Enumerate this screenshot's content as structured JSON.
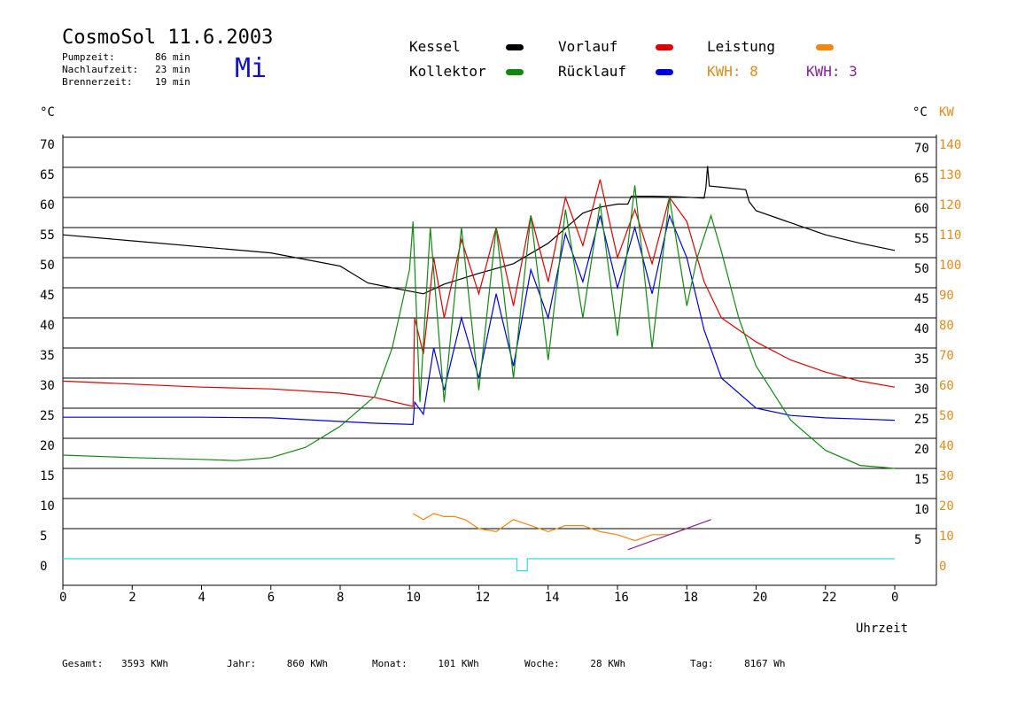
{
  "header": {
    "title": "CosmoSol 11.6.2003",
    "day": "Mi",
    "stats": [
      {
        "label": "Pumpzeit:",
        "value": "86 min"
      },
      {
        "label": "Nachlaufzeit:",
        "value": "23 min"
      },
      {
        "label": "Brennerzeit:",
        "value": "19 min"
      }
    ]
  },
  "legend": {
    "kessel": {
      "label": "Kessel",
      "color": "#000000"
    },
    "vorlauf": {
      "label": "Vorlauf",
      "color": "#dd0000"
    },
    "leistung": {
      "label": "Leistung",
      "color": "#ee8811"
    },
    "kollektor": {
      "label": "Kollektor",
      "color": "#118811"
    },
    "ruecklauf": {
      "label": "Rücklauf",
      "color": "#0000dd"
    },
    "kwh1": {
      "label": "KWH: 8",
      "color": "#e08c1e"
    },
    "kwh2": {
      "label": "KWH: 3",
      "color": "#882299"
    }
  },
  "footer": [
    {
      "label": "Gesamt:",
      "value": "3593 KWh"
    },
    {
      "label": "Jahr:",
      "value": "860 KWh"
    },
    {
      "label": "Monat:",
      "value": "101 KWh"
    },
    {
      "label": "Woche:",
      "value": "28 KWh"
    },
    {
      "label": "Tag:",
      "value": "8167 Wh"
    }
  ],
  "chart_data": {
    "type": "line",
    "xlabel": "Uhrzeit",
    "ylabel_left": "°C",
    "ylabel_right": "°C",
    "ylabel_power": "KW",
    "xlim": [
      0,
      24
    ],
    "ylim": [
      -4,
      74
    ],
    "x_ticks": [
      "0",
      "2",
      "4",
      "6",
      "8",
      "10",
      "12",
      "14",
      "16",
      "18",
      "20",
      "22",
      "0"
    ],
    "y_ticks_left": [
      0,
      5,
      10,
      15,
      20,
      25,
      30,
      35,
      40,
      45,
      50,
      55,
      60,
      65,
      70
    ],
    "y_ticks_right": [
      5,
      10,
      15,
      20,
      25,
      30,
      35,
      40,
      45,
      50,
      55,
      60,
      65,
      70
    ],
    "y_ticks_power": [
      0,
      10,
      20,
      30,
      40,
      50,
      60,
      70,
      80,
      90,
      100,
      110,
      120,
      130,
      140
    ],
    "grid": true,
    "series": [
      {
        "name": "Kessel",
        "color": "#000000",
        "x": [
          0,
          2,
          4,
          6,
          8,
          8.8,
          9.5,
          10.4,
          11,
          12,
          13,
          14,
          15,
          15.5,
          16,
          16.3,
          16.4,
          17,
          17.8,
          18.5,
          18.55,
          18.6,
          18.65,
          19,
          19.7,
          19.8,
          20,
          21,
          22,
          23,
          24
        ],
        "y": [
          53.8,
          52.8,
          51.8,
          50.8,
          48.6,
          45.8,
          45,
          44,
          45.6,
          47.4,
          49,
          52.4,
          57.4,
          58.4,
          58.9,
          58.9,
          60.2,
          60.2,
          60.1,
          59.9,
          61.6,
          65.2,
          61.9,
          61.7,
          61.3,
          59.3,
          57.8,
          55.8,
          53.8,
          52.4,
          51.2
        ]
      },
      {
        "name": "Vorlauf",
        "color": "#dd0000",
        "x": [
          0,
          2,
          4,
          6,
          8,
          9,
          10.1,
          10.15,
          10.4,
          10.7,
          11,
          11.5,
          12,
          12.5,
          13,
          13.5,
          14,
          14.5,
          15,
          15.5,
          16,
          16.5,
          17,
          17.5,
          18,
          18.5,
          19,
          20,
          21,
          22,
          23,
          24
        ],
        "y": [
          29.5,
          29,
          28.5,
          28.2,
          27.5,
          26.8,
          25.3,
          40,
          34,
          50,
          40,
          53,
          44,
          55,
          42,
          57,
          46,
          60,
          52,
          63,
          50,
          58,
          49,
          60,
          56,
          46,
          40,
          36,
          33,
          31,
          29.5,
          28.5
        ]
      },
      {
        "name": "Rücklauf",
        "color": "#0000dd",
        "x": [
          0,
          2,
          4,
          6,
          8,
          9,
          10.1,
          10.15,
          10.4,
          10.7,
          11,
          11.5,
          12,
          12.5,
          13,
          13.5,
          14,
          14.5,
          15,
          15.5,
          16,
          16.5,
          17,
          17.5,
          18,
          18.5,
          19,
          20,
          21,
          22,
          23,
          24
        ],
        "y": [
          23.5,
          23.5,
          23.5,
          23.4,
          22.8,
          22.5,
          22.3,
          26,
          24,
          35,
          28,
          40,
          30,
          44,
          32,
          48,
          40,
          54,
          46,
          57,
          45,
          55,
          44,
          57,
          50,
          38,
          30,
          25,
          23.8,
          23.4,
          23.2,
          23
        ],
        "note": "oscillates during pump cycles"
      },
      {
        "name": "Kollektor",
        "color": "#118811",
        "x": [
          0,
          2,
          4,
          5,
          6,
          7,
          8,
          9,
          9.5,
          10,
          10.1,
          10.3,
          10.6,
          11,
          11.5,
          12,
          12.5,
          13,
          13.5,
          14,
          14.5,
          15,
          15.5,
          16,
          16.5,
          17,
          17.5,
          18,
          18.3,
          18.7,
          19,
          19.5,
          20,
          21,
          22,
          23,
          24
        ],
        "y": [
          17.2,
          16.8,
          16.5,
          16.3,
          16.8,
          18.5,
          22,
          27,
          35,
          48,
          56,
          26,
          55,
          26,
          55,
          28,
          55,
          30,
          57,
          33,
          58,
          40,
          59,
          37,
          62,
          35,
          60,
          42,
          50,
          57,
          51,
          40,
          32,
          23,
          18,
          15.5,
          15
        ],
        "note": "oscillates during pump cycles"
      },
      {
        "name": "Leistung",
        "color": "#ee8811",
        "x": [
          10.1,
          10.4,
          10.7,
          11,
          11.3,
          11.6,
          12,
          12.5,
          13,
          13.5,
          14,
          14.5,
          15,
          15.5,
          16,
          16.5,
          17,
          17.5,
          18
        ],
        "y": [
          7.5,
          6.5,
          7.5,
          7,
          7,
          6.5,
          5,
          4.5,
          6.5,
          5.5,
          4.5,
          5.5,
          5.5,
          4.5,
          4,
          3,
          4,
          4,
          5
        ],
        "note": "power pulses, axis KW"
      },
      {
        "name": "Brenner",
        "color": "#882299",
        "x": [
          16.3,
          18.7
        ],
        "y": [
          1.5,
          6.5
        ]
      },
      {
        "name": "Pumpe",
        "color": "#33dddd",
        "x": [
          0,
          13.1,
          13.1,
          13.4,
          13.4,
          24
        ],
        "y": [
          0,
          0,
          -2,
          -2,
          0,
          0
        ]
      }
    ]
  }
}
